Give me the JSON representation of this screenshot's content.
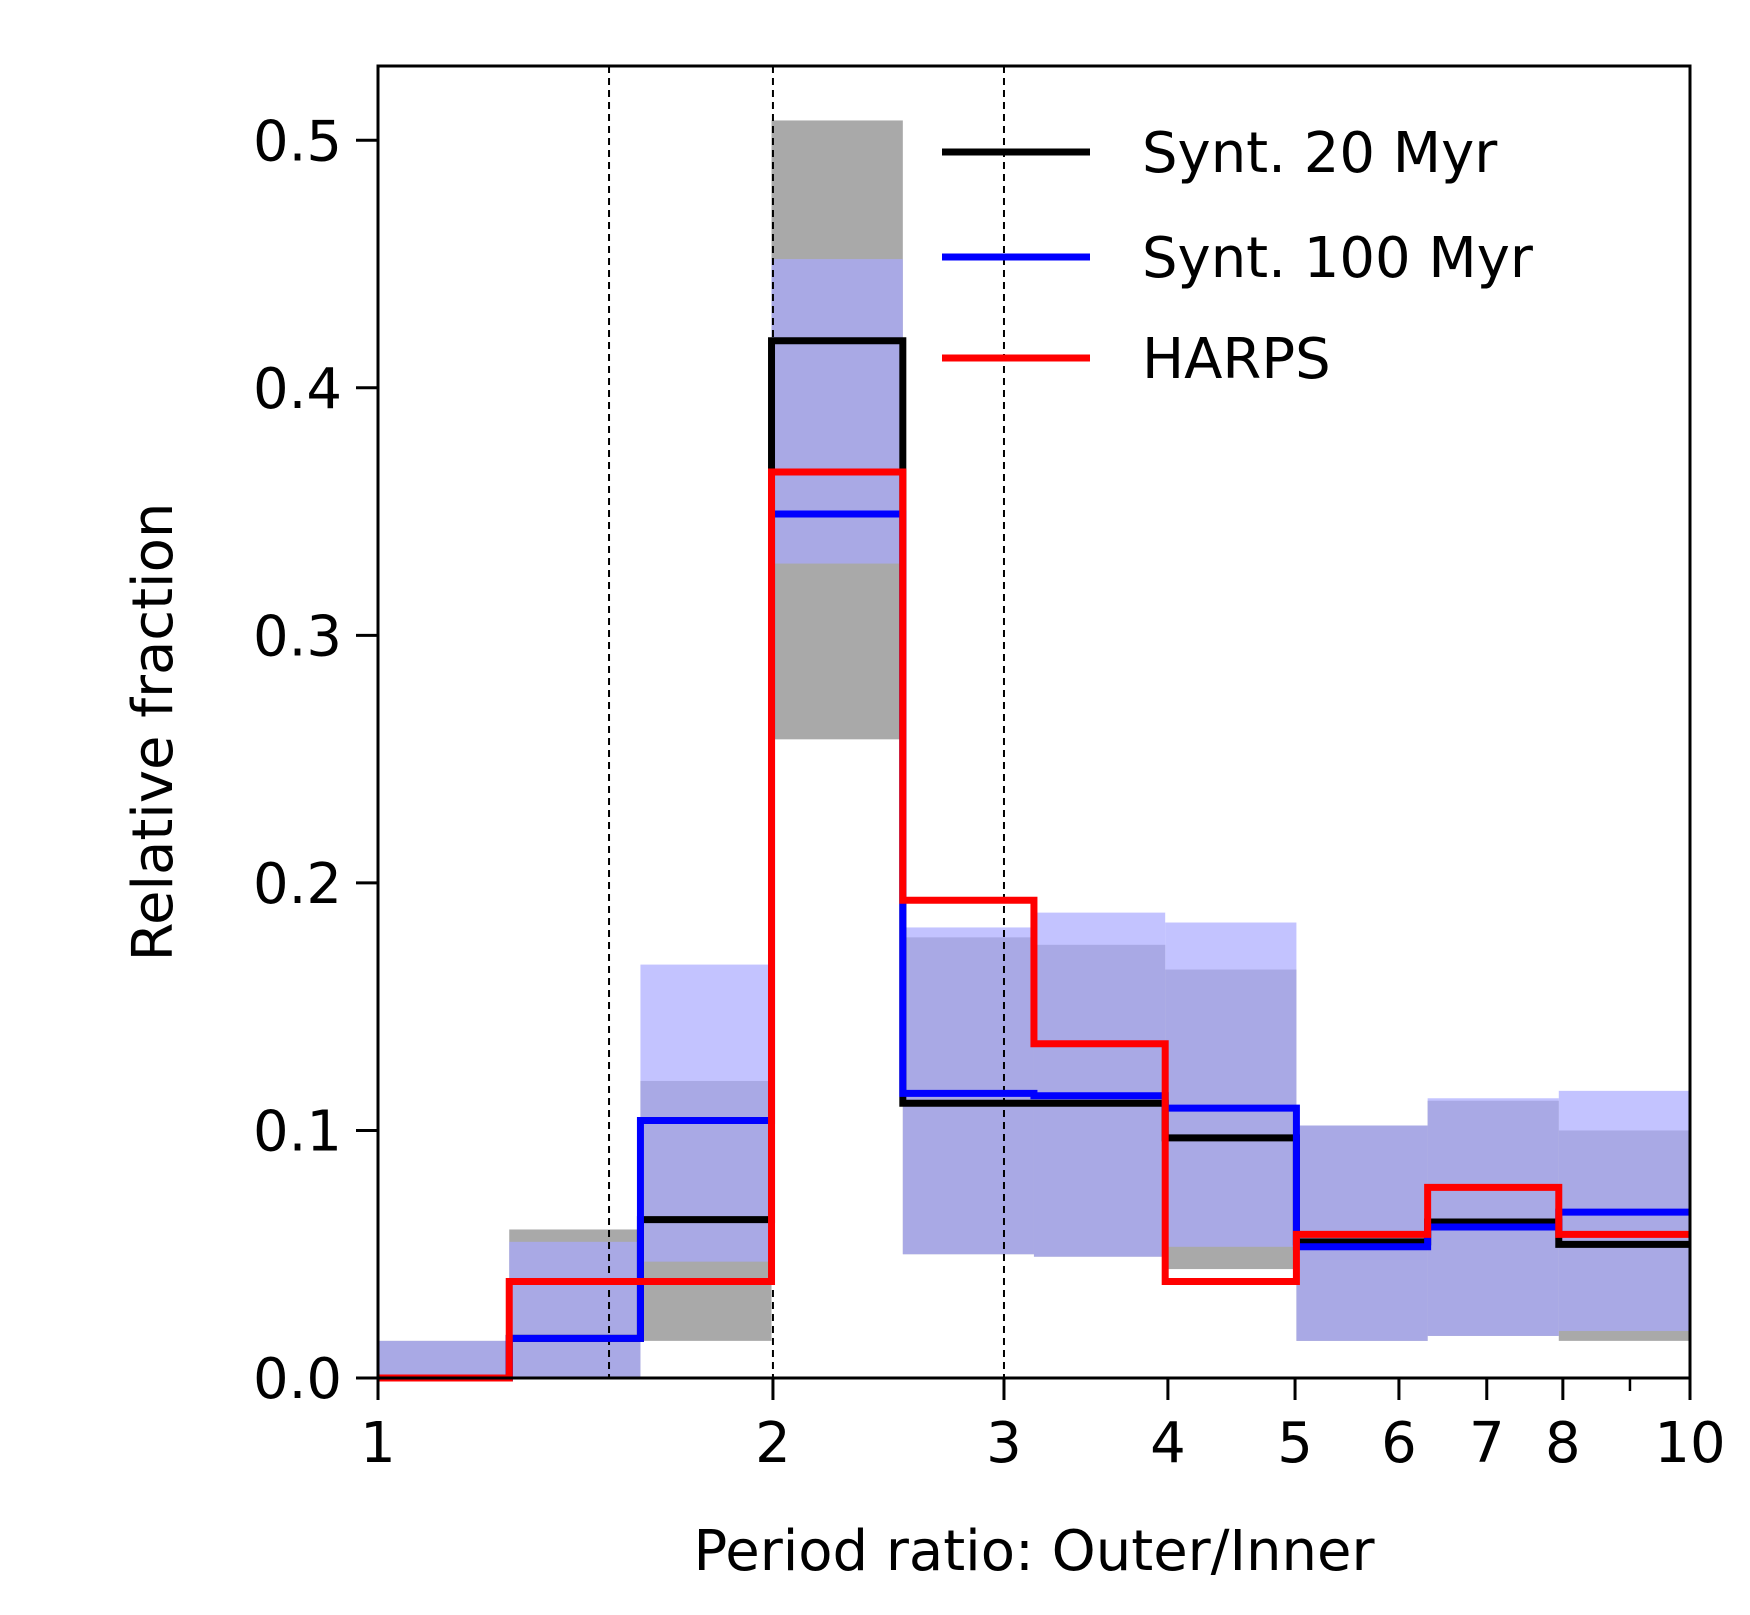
{
  "chart_data": {
    "type": "histogram",
    "xscale": "log",
    "xlim": [
      1,
      10
    ],
    "ylim": [
      0,
      0.53
    ],
    "xlabel": "Period ratio: Outer/Inner",
    "ylabel": "Relative fraction",
    "x_major_ticks": [
      {
        "value": 1,
        "label": "1"
      },
      {
        "value": 2,
        "label": "2"
      },
      {
        "value": 3,
        "label": "3"
      },
      {
        "value": 4,
        "label": "4"
      },
      {
        "value": 5,
        "label": "5"
      },
      {
        "value": 6,
        "label": "6"
      },
      {
        "value": 7,
        "label": "7"
      },
      {
        "value": 8,
        "label": "8"
      },
      {
        "value": 10,
        "label": "10"
      }
    ],
    "x_minor_ticks": [
      9
    ],
    "y_ticks": [
      {
        "value": 0.0,
        "label": "0.0"
      },
      {
        "value": 0.1,
        "label": "0.1"
      },
      {
        "value": 0.2,
        "label": "0.2"
      },
      {
        "value": 0.3,
        "label": "0.3"
      },
      {
        "value": 0.4,
        "label": "0.4"
      },
      {
        "value": 0.5,
        "label": "0.5"
      }
    ],
    "reference_lines_x": [
      1.5,
      2,
      3
    ],
    "bin_edges": [
      1.0,
      1.259,
      1.585,
      1.995,
      2.512,
      3.162,
      3.981,
      5.012,
      6.31,
      7.943,
      10.0
    ],
    "series": [
      {
        "name": "Synt. 20 Myr",
        "color": "#000000",
        "band_color": "#a9a9a9",
        "values": [
          0.0,
          0.016,
          0.064,
          0.419,
          0.111,
          0.111,
          0.097,
          0.055,
          0.063,
          0.054
        ],
        "band_low": [
          0.0,
          0.0,
          0.015,
          0.258,
          0.05,
          0.049,
          0.044,
          0.015,
          0.017,
          0.015
        ],
        "band_high": [
          0.015,
          0.06,
          0.12,
          0.508,
          0.178,
          0.175,
          0.165,
          0.102,
          0.112,
          0.1
        ]
      },
      {
        "name": "Synt. 100 Myr",
        "color": "#0000ff",
        "band_color": "#aaaaff",
        "values": [
          0.0,
          0.016,
          0.104,
          0.349,
          0.115,
          0.114,
          0.109,
          0.053,
          0.061,
          0.067
        ],
        "band_low": [
          0.0,
          0.0,
          0.047,
          0.329,
          0.05,
          0.049,
          0.053,
          0.015,
          0.017,
          0.019
        ],
        "band_high": [
          0.015,
          0.055,
          0.167,
          0.452,
          0.182,
          0.188,
          0.184,
          0.102,
          0.113,
          0.116
        ]
      },
      {
        "name": "HARPS",
        "color": "#ff0000",
        "values": [
          0.0,
          0.039,
          0.039,
          0.366,
          0.193,
          0.135,
          0.039,
          0.058,
          0.077,
          0.058
        ]
      }
    ],
    "legend_position": "upper right"
  }
}
